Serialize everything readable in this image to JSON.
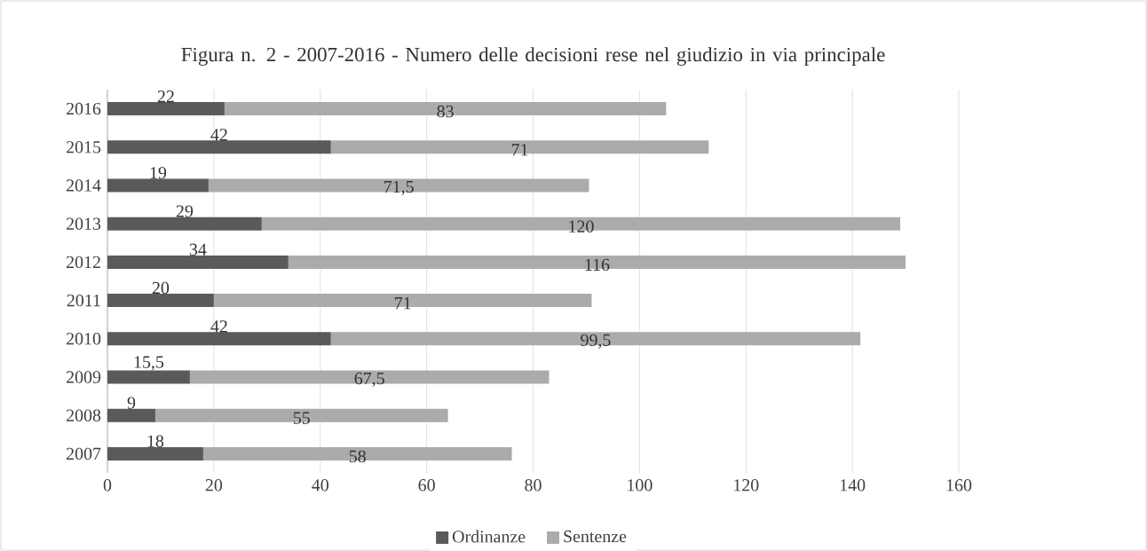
{
  "chart_data": {
    "type": "bar",
    "orientation": "horizontal",
    "stacked": true,
    "title": "Figura n. 2 - 2007-2016 - Numero delle decisioni rese nel giudizio in via principale",
    "categories": [
      "2016",
      "2015",
      "2014",
      "2013",
      "2012",
      "2011",
      "2010",
      "2009",
      "2008",
      "2007"
    ],
    "series": [
      {
        "name": "Ordinanze",
        "color": "#5a5a5a",
        "values": [
          22,
          42,
          19,
          29,
          34,
          20,
          42,
          15.5,
          9,
          18
        ],
        "value_labels": [
          "22",
          "42",
          "19",
          "29",
          "34",
          "20",
          "42",
          "15,5",
          "9",
          "18"
        ]
      },
      {
        "name": "Sentenze",
        "color": "#ababab",
        "values": [
          83,
          71,
          71.5,
          120,
          116,
          71,
          99.5,
          67.5,
          55,
          58
        ],
        "value_labels": [
          "83",
          "71",
          "71,5",
          "120",
          "116",
          "71",
          "99,5",
          "67,5",
          "55",
          "58"
        ]
      }
    ],
    "xlim": [
      0,
      160
    ],
    "xticks": [
      0,
      20,
      40,
      60,
      80,
      100,
      120,
      140,
      160
    ],
    "grid": "x",
    "legend": "bottom"
  }
}
